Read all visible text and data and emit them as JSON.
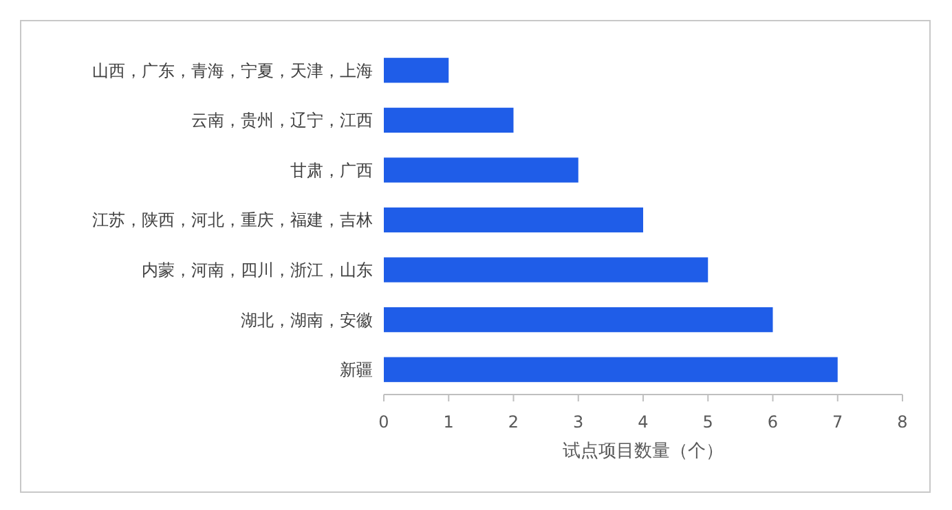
{
  "chart_data": {
    "type": "bar",
    "orientation": "horizontal",
    "xlabel": "试点项目数量（个）",
    "categories": [
      "山西，广东，青海，宁夏，天津，上海",
      "云南，贵州，辽宁，江西",
      "甘肃，广西",
      "江苏，陕西，河北，重庆，福建，吉林",
      "内蒙，河南，四川，浙江，山东",
      "湖北，湖南，安徽",
      "新疆"
    ],
    "values": [
      1,
      2,
      3,
      4,
      5,
      6,
      7
    ],
    "color": "#1f5de8",
    "xlim": [
      0,
      8
    ],
    "xticks": [
      0,
      1,
      2,
      3,
      4,
      5,
      6,
      7,
      8
    ],
    "grid": false
  }
}
